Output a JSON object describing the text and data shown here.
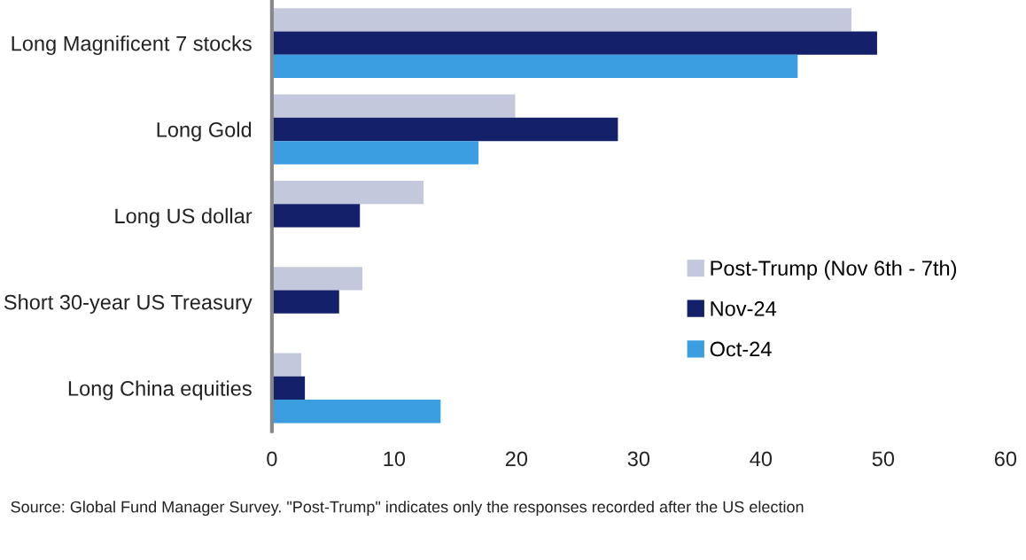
{
  "chart_data": {
    "type": "bar",
    "orientation": "horizontal",
    "categories": [
      "Long Magnificent 7 stocks",
      "Long Gold",
      "Long US dollar",
      "Short 30-year US Treasury",
      "Long China equities"
    ],
    "series": [
      {
        "name": "Post-Trump (Nov 6th - 7th)",
        "color": "#c3c8dc",
        "values": [
          47.4,
          19.9,
          12.4,
          7.4,
          2.4
        ]
      },
      {
        "name": "Nov-24",
        "color": "#14206a",
        "values": [
          49.5,
          28.3,
          7.2,
          5.5,
          2.7
        ]
      },
      {
        "name": "Oct-24",
        "color": "#3a9ee0",
        "values": [
          43.0,
          16.9,
          null,
          null,
          13.8
        ]
      }
    ],
    "xlim": [
      0,
      60
    ],
    "xticks": [
      0,
      10,
      20,
      30,
      40,
      50,
      60
    ],
    "grid": false,
    "legend": "bottom right",
    "annotations": [
      "Source: Global Fund Manager Survey. \"Post-Trump\" indicates only the responses recorded after the US election"
    ]
  }
}
